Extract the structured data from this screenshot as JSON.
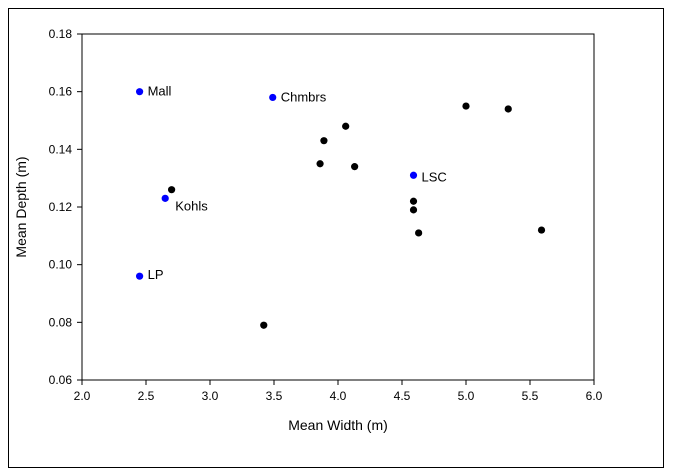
{
  "chart_data": {
    "type": "scatter",
    "title": "",
    "xlabel": "Mean Width (m)",
    "ylabel": "Mean Depth (m)",
    "xlim": [
      2.0,
      6.0
    ],
    "ylim": [
      0.06,
      0.18
    ],
    "xticks": [
      "2.0",
      "2.5",
      "3.0",
      "3.5",
      "4.0",
      "4.5",
      "5.0",
      "5.5",
      "6.0"
    ],
    "yticks": [
      "0.06",
      "0.08",
      "0.10",
      "0.12",
      "0.14",
      "0.16",
      "0.18"
    ],
    "grid": false,
    "colors": {
      "labeled": "#0000ff",
      "unlabeled": "#000000"
    },
    "points": [
      {
        "x": 2.45,
        "y": 0.16,
        "label": "Mall",
        "color": "#0000ff"
      },
      {
        "x": 3.49,
        "y": 0.158,
        "label": "Chmbrs",
        "color": "#0000ff"
      },
      {
        "x": 2.65,
        "y": 0.123,
        "label": "Kohls",
        "color": "#0000ff"
      },
      {
        "x": 4.59,
        "y": 0.131,
        "label": "LSC",
        "color": "#0000ff"
      },
      {
        "x": 2.45,
        "y": 0.096,
        "label": "LP",
        "color": "#0000ff"
      },
      {
        "x": 2.7,
        "y": 0.126,
        "label": "",
        "color": "#000000"
      },
      {
        "x": 3.42,
        "y": 0.079,
        "label": "",
        "color": "#000000"
      },
      {
        "x": 3.86,
        "y": 0.135,
        "label": "",
        "color": "#000000"
      },
      {
        "x": 3.89,
        "y": 0.143,
        "label": "",
        "color": "#000000"
      },
      {
        "x": 4.06,
        "y": 0.148,
        "label": "",
        "color": "#000000"
      },
      {
        "x": 4.13,
        "y": 0.134,
        "label": "",
        "color": "#000000"
      },
      {
        "x": 4.59,
        "y": 0.122,
        "label": "",
        "color": "#000000"
      },
      {
        "x": 4.59,
        "y": 0.119,
        "label": "",
        "color": "#000000"
      },
      {
        "x": 4.63,
        "y": 0.111,
        "label": "",
        "color": "#000000"
      },
      {
        "x": 5.0,
        "y": 0.155,
        "label": "",
        "color": "#000000"
      },
      {
        "x": 5.33,
        "y": 0.154,
        "label": "",
        "color": "#000000"
      },
      {
        "x": 5.59,
        "y": 0.112,
        "label": "",
        "color": "#000000"
      }
    ]
  }
}
